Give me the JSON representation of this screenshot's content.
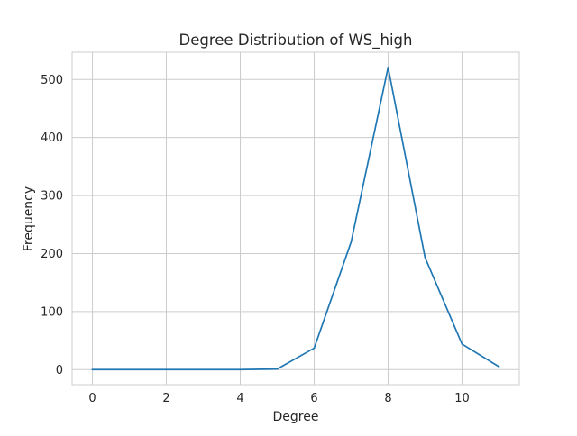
{
  "chart_data": {
    "type": "line",
    "title": "Degree Distribution of WS_high",
    "xlabel": "Degree",
    "ylabel": "Frequency",
    "x": [
      0,
      1,
      2,
      3,
      4,
      5,
      6,
      7,
      8,
      9,
      10,
      11
    ],
    "series": [
      {
        "values": [
          0,
          0,
          0,
          0,
          0,
          1,
          37,
          220,
          521,
          193,
          44,
          5
        ],
        "color": "#1f77b4"
      }
    ],
    "xlim": [
      -0.55,
      11.55
    ],
    "ylim": [
      -26,
      547
    ],
    "xticks": [
      0,
      2,
      4,
      6,
      8,
      10
    ],
    "yticks": [
      0,
      100,
      200,
      300,
      400,
      500
    ],
    "grid": true,
    "grid_color": "#cccccc",
    "spine_color": "#cccccc",
    "legend": "none"
  }
}
